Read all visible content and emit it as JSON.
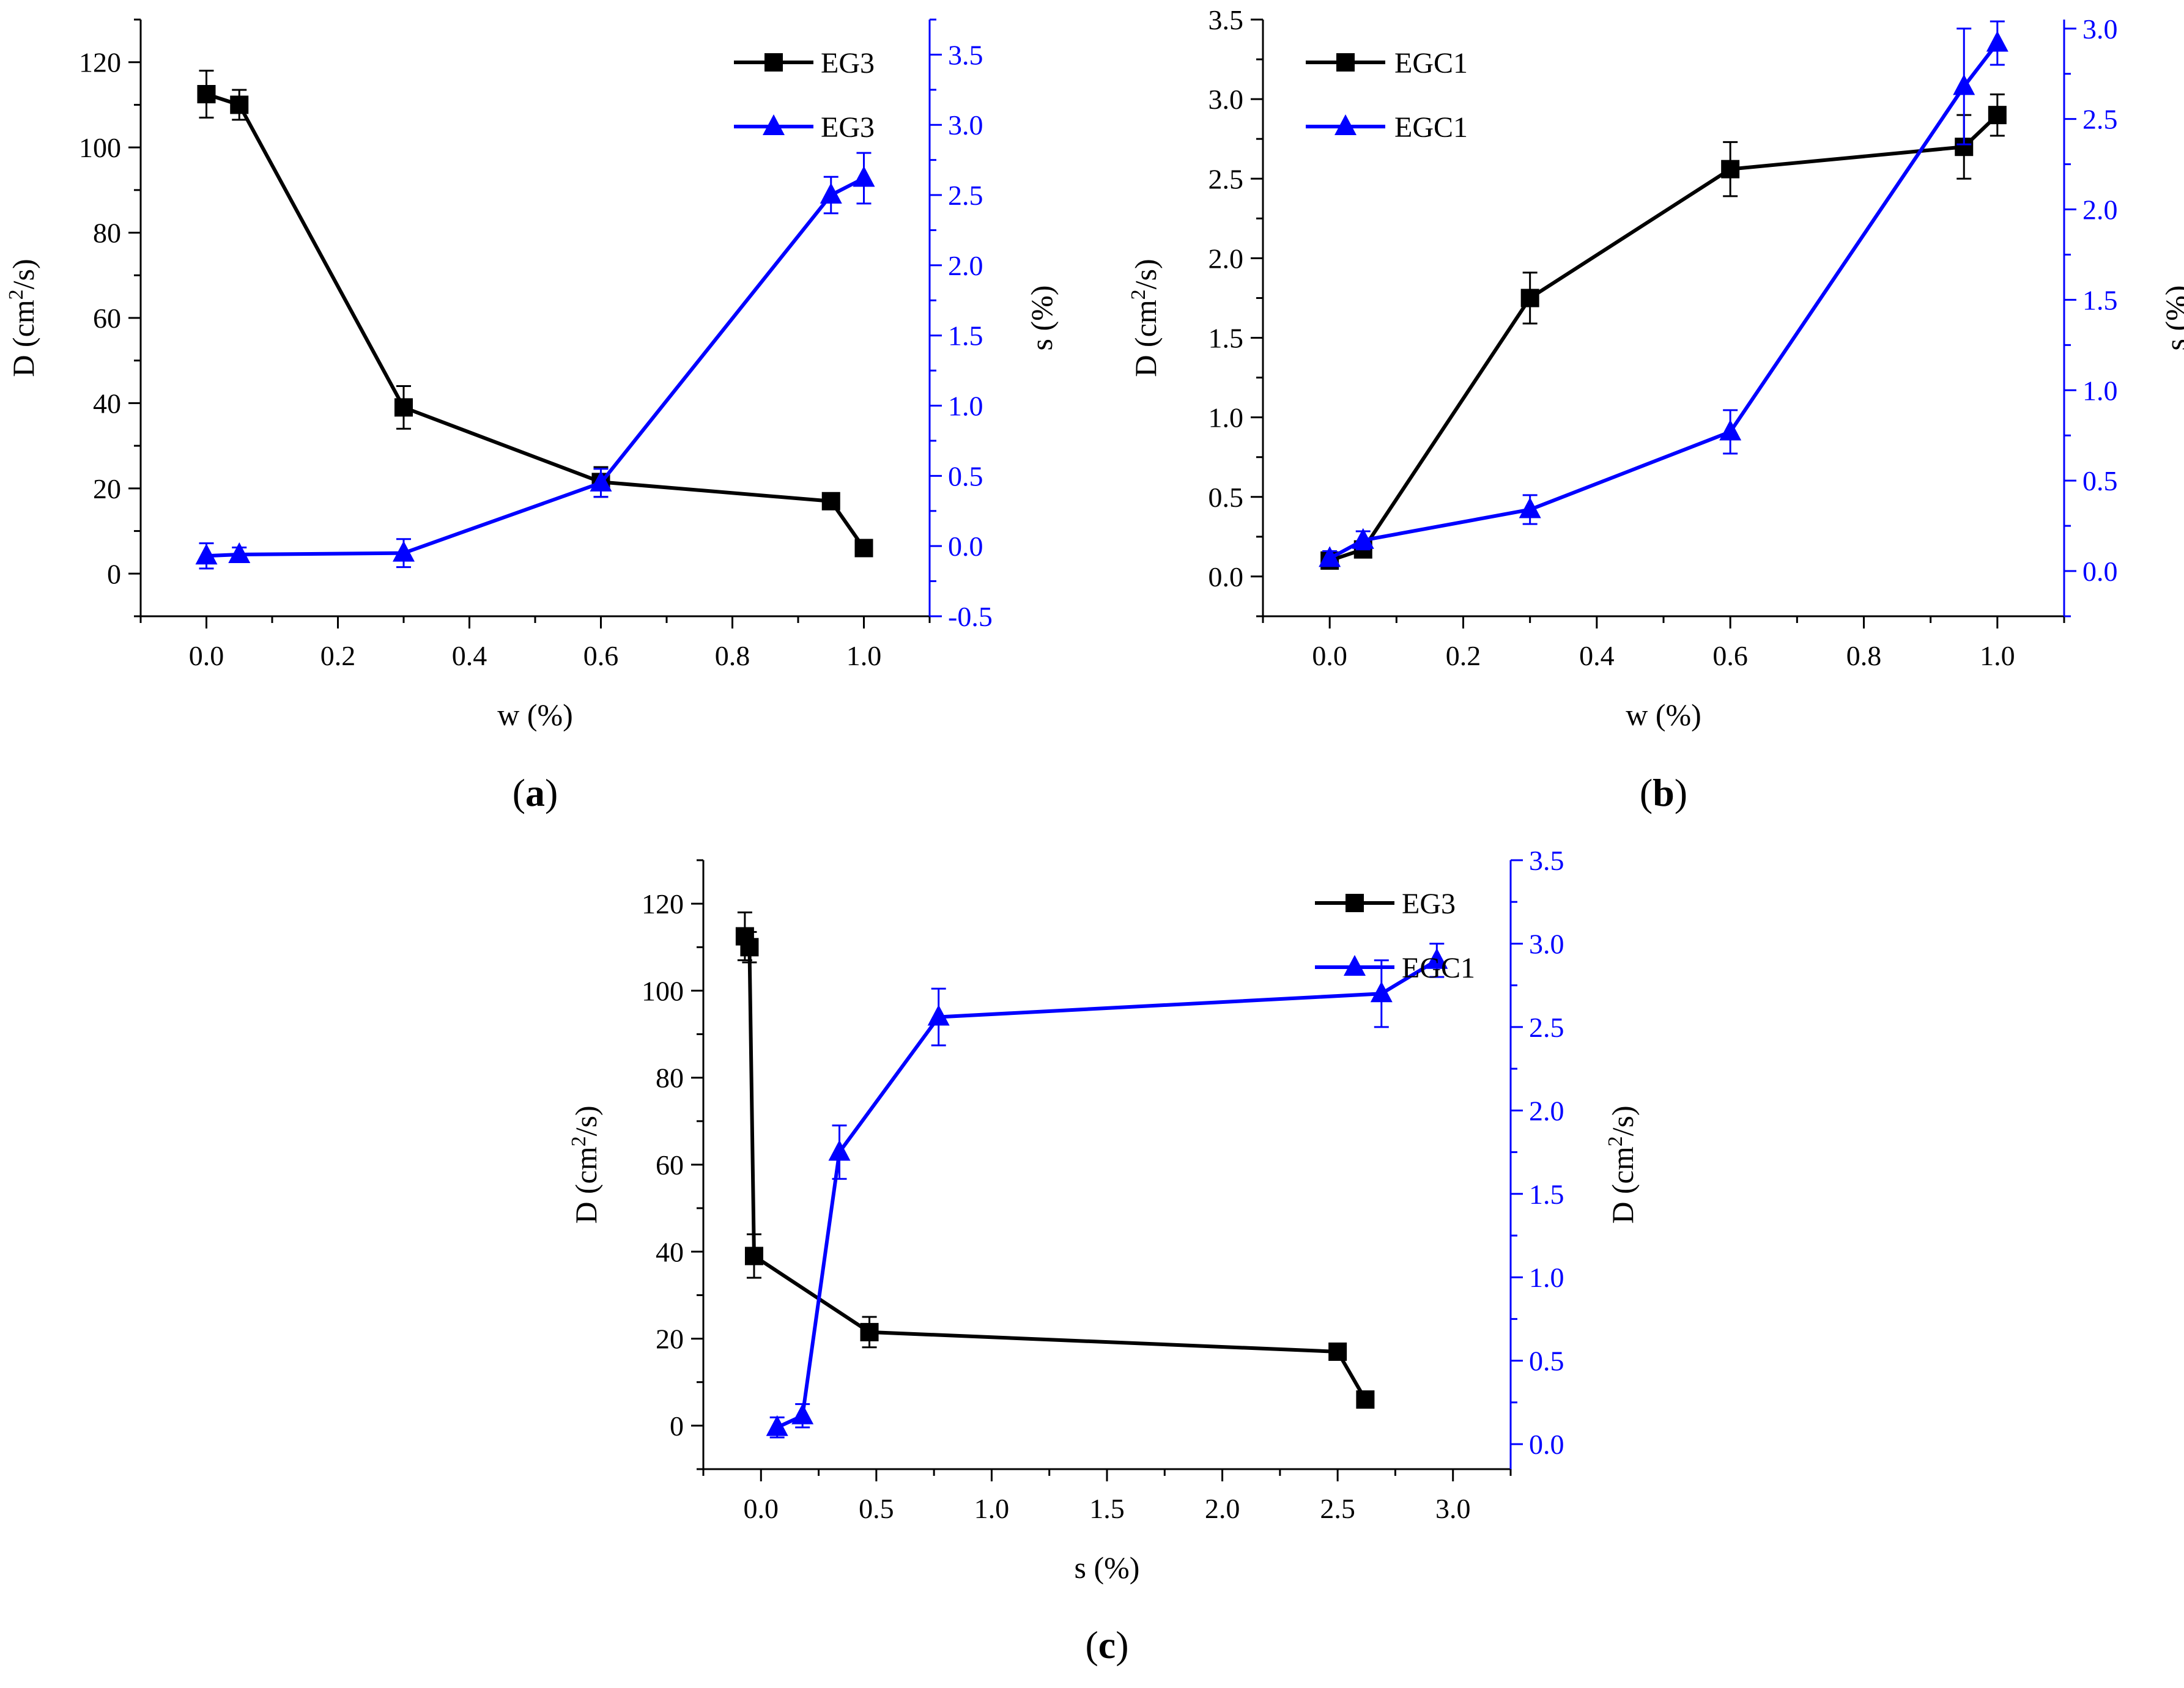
{
  "colors": {
    "black": "#000000",
    "blue": "#0000ff"
  },
  "chart_data": [
    {
      "id": "a",
      "type": "line",
      "panel_label": "a",
      "xlabel": "w (%)",
      "ylabel_left": "D (cm2/s)",
      "ylabel_right": "s (%)",
      "xlim": [
        -0.1,
        1.1
      ],
      "ylim_left": [
        -10,
        130
      ],
      "ylim_right": [
        -0.5,
        3.75
      ],
      "x_ticks": [
        0.0,
        0.2,
        0.4,
        0.6,
        0.8,
        1.0
      ],
      "x_tick_labels": [
        "0.0",
        "0.2",
        "0.4",
        "0.6",
        "0.8",
        "1.0"
      ],
      "y_left_ticks": [
        0,
        20,
        40,
        60,
        80,
        100,
        120
      ],
      "y_left_tick_labels": [
        "0",
        "20",
        "40",
        "60",
        "80",
        "100",
        "120"
      ],
      "y_right_ticks": [
        -0.5,
        0.0,
        0.5,
        1.0,
        1.5,
        2.0,
        2.5,
        3.0,
        3.5
      ],
      "y_right_tick_labels": [
        "-0.5",
        "0.0",
        "0.5",
        "1.0",
        "1.5",
        "2.0",
        "2.5",
        "3.0",
        "3.5"
      ],
      "legend_position": "top-right",
      "series": [
        {
          "name": "EG3",
          "axis": "left",
          "color": "#000000",
          "marker": "square",
          "x": [
            0.0,
            0.05,
            0.3,
            0.6,
            0.95,
            1.0
          ],
          "y": [
            112.5,
            110,
            39,
            21.5,
            17,
            6
          ],
          "err": [
            5.5,
            3.5,
            5,
            3.5,
            1,
            1
          ]
        },
        {
          "name": "EG3",
          "axis": "right",
          "color": "#0000ff",
          "marker": "triangle",
          "x": [
            0.0,
            0.05,
            0.3,
            0.6,
            0.95,
            1.0
          ],
          "y": [
            -0.07,
            -0.06,
            -0.05,
            0.45,
            2.5,
            2.62
          ],
          "err": [
            0.09,
            0.05,
            0.1,
            0.1,
            0.13,
            0.18
          ]
        }
      ]
    },
    {
      "id": "b",
      "type": "line",
      "panel_label": "b",
      "xlabel": "w (%)",
      "ylabel_left": "D (cm2/s)",
      "ylabel_right": "s (%)",
      "xlim": [
        -0.1,
        1.1
      ],
      "ylim_left": [
        -0.25,
        3.5
      ],
      "ylim_right": [
        -0.25,
        3.05
      ],
      "x_ticks": [
        0.0,
        0.2,
        0.4,
        0.6,
        0.8,
        1.0
      ],
      "x_tick_labels": [
        "0.0",
        "0.2",
        "0.4",
        "0.6",
        "0.8",
        "1.0"
      ],
      "y_left_ticks": [
        0.0,
        0.5,
        1.0,
        1.5,
        2.0,
        2.5,
        3.0,
        3.5
      ],
      "y_left_tick_labels": [
        "0.0",
        "0.5",
        "1.0",
        "1.5",
        "2.0",
        "2.5",
        "3.0",
        "3.5"
      ],
      "y_right_ticks": [
        0.0,
        0.5,
        1.0,
        1.5,
        2.0,
        2.5,
        3.0
      ],
      "y_right_tick_labels": [
        "0.0",
        "0.5",
        "1.0",
        "1.5",
        "2.0",
        "2.5",
        "3.0"
      ],
      "legend_position": "top-left",
      "series": [
        {
          "name": "EGC1",
          "axis": "left",
          "color": "#000000",
          "marker": "square",
          "x": [
            0.0,
            0.05,
            0.3,
            0.6,
            0.95,
            1.0
          ],
          "y": [
            0.1,
            0.17,
            1.75,
            2.56,
            2.7,
            2.9
          ],
          "err": [
            0.05,
            0.05,
            0.16,
            0.17,
            0.2,
            0.13
          ]
        },
        {
          "name": "EGC1",
          "axis": "right",
          "color": "#0000ff",
          "marker": "triangle",
          "x": [
            0.0,
            0.05,
            0.3,
            0.6,
            0.95,
            1.0
          ],
          "y": [
            0.07,
            0.17,
            0.34,
            0.77,
            2.68,
            2.92
          ],
          "err": [
            0.04,
            0.05,
            0.08,
            0.12,
            0.32,
            0.12
          ]
        }
      ]
    },
    {
      "id": "c",
      "type": "line",
      "panel_label": "c",
      "xlabel": "s (%)",
      "ylabel_left": "D (cm2/s)",
      "ylabel_right": "D (cm2/s)",
      "xlim": [
        -0.25,
        3.25
      ],
      "ylim_left": [
        -10,
        130
      ],
      "ylim_right": [
        -0.15,
        3.5
      ],
      "x_ticks": [
        0.0,
        0.5,
        1.0,
        1.5,
        2.0,
        2.5,
        3.0
      ],
      "x_tick_labels": [
        "0.0",
        "0.5",
        "1.0",
        "1.5",
        "2.0",
        "2.5",
        "3.0"
      ],
      "y_left_ticks": [
        0,
        20,
        40,
        60,
        80,
        100,
        120
      ],
      "y_left_tick_labels": [
        "0",
        "20",
        "40",
        "60",
        "80",
        "100",
        "120"
      ],
      "y_right_ticks": [
        0.0,
        0.5,
        1.0,
        1.5,
        2.0,
        2.5,
        3.0,
        3.5
      ],
      "y_right_tick_labels": [
        "0.0",
        "0.5",
        "1.0",
        "1.5",
        "2.0",
        "2.5",
        "3.0",
        "3.5"
      ],
      "legend_position": "top-right",
      "series": [
        {
          "name": "EG3",
          "axis": "left",
          "color": "#000000",
          "marker": "square",
          "x": [
            -0.07,
            -0.05,
            -0.03,
            0.47,
            2.5,
            2.62
          ],
          "y": [
            112.5,
            110,
            39,
            21.5,
            17,
            6
          ],
          "err": [
            5.5,
            3.5,
            5,
            3.5,
            1,
            1
          ]
        },
        {
          "name": "EGC1",
          "axis": "right",
          "color": "#0000ff",
          "marker": "triangle",
          "x": [
            0.07,
            0.18,
            0.34,
            0.77,
            2.69,
            2.93
          ],
          "y": [
            0.1,
            0.17,
            1.75,
            2.56,
            2.7,
            2.9
          ],
          "err": [
            0.06,
            0.07,
            0.16,
            0.17,
            0.2,
            0.1
          ]
        }
      ]
    }
  ]
}
